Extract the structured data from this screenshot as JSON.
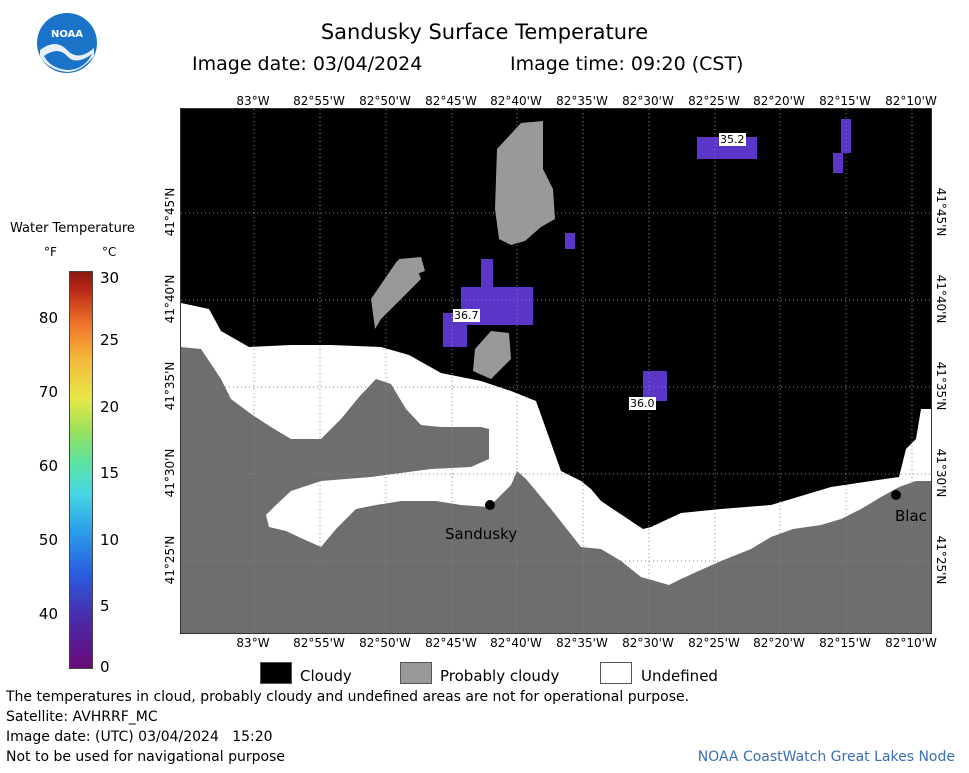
{
  "title": "Sandusky Surface Temperature",
  "image_date_label": "Image date: 03/04/2024",
  "image_time_label": "Image time: 09:20 (CST)",
  "logo_text": "NOAA",
  "longitude_labels": [
    "83°W",
    "82°55'W",
    "82°50'W",
    "82°45'W",
    "82°40'W",
    "82°35'W",
    "82°30'W",
    "82°25'W",
    "82°20'W",
    "82°15'W",
    "82°10'W"
  ],
  "latitude_labels": [
    "41°45'N",
    "41°40'N",
    "41°35'N",
    "41°30'N",
    "41°25'N"
  ],
  "legend": {
    "title": "Water Temperature",
    "unit_f": "°F",
    "unit_c": "°C",
    "fahrenheit_ticks": [
      "80",
      "70",
      "60",
      "50",
      "40"
    ],
    "celsius_ticks": [
      "30",
      "25",
      "20",
      "15",
      "10",
      "5",
      "0"
    ]
  },
  "temperature_readings": [
    {
      "label": "36.7"
    },
    {
      "label": "35.2"
    },
    {
      "label": "36.0"
    }
  ],
  "cities": [
    "Sandusky",
    "Blac"
  ],
  "map_legend": {
    "cloudy": "Cloudy",
    "probably_cloudy": "Probably cloudy",
    "undefined": "Undefined"
  },
  "colors": {
    "cloud": "#000000",
    "probably_cloudy": "#999999",
    "land": "#6e6e6e",
    "undefined": "#ffffff",
    "cold_water": "#5a35c8",
    "credit": "#3a6fb3"
  },
  "footer": {
    "disclaimer": "The temperatures in cloud, probably cloudy and undefined areas are not for operational purpose.",
    "satellite": "Satellite: AVHRRF_MC",
    "utc_date": "Image date: (UTC) 03/04/2024   15:20",
    "navigation": "Not to be used for navigational purpose",
    "credit": "NOAA CoastWatch Great Lakes Node"
  }
}
